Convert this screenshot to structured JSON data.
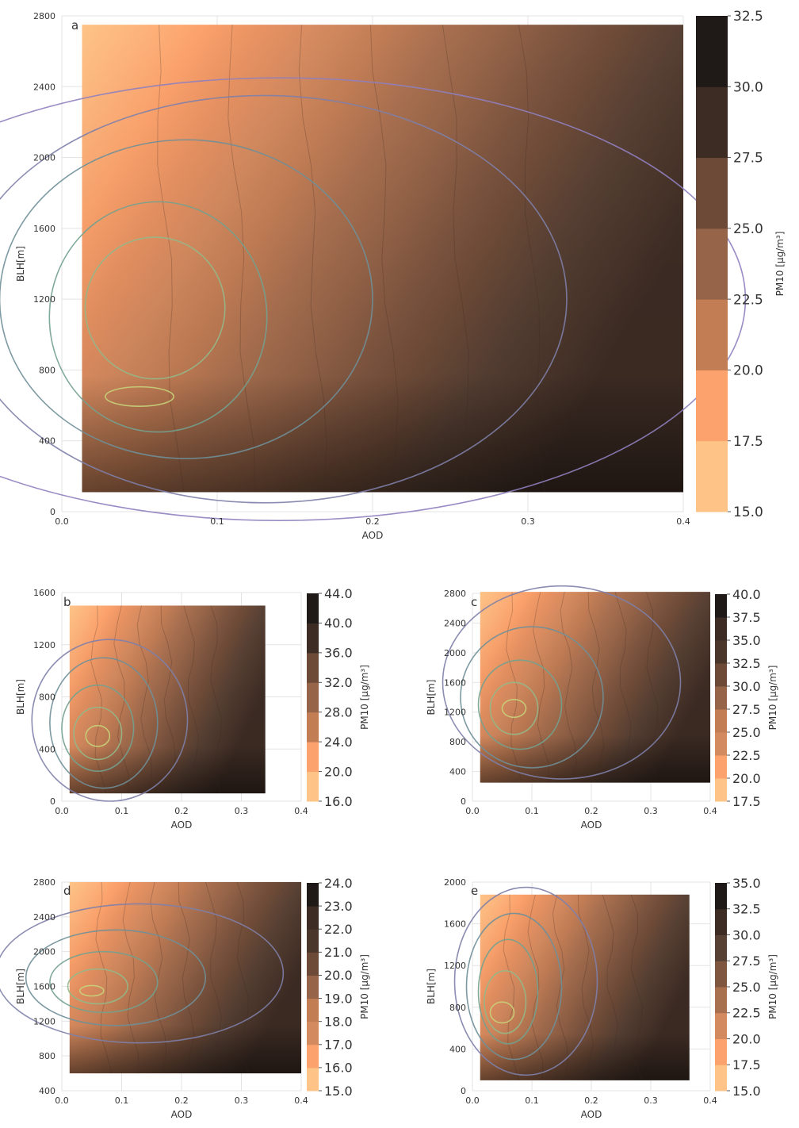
{
  "figure": {
    "colormap": [
      "#fdc387",
      "#fdb47c",
      "#fca26c",
      "#e89262",
      "#d48a5f",
      "#c27d55",
      "#a97050",
      "#966448",
      "#7f5640",
      "#6c4a37",
      "#574034",
      "#4b362b",
      "#3d2c24",
      "#2d2320",
      "#1f1a18"
    ],
    "contour_colors": [
      "#8f7fbf",
      "#7e80a8",
      "#6f8f98",
      "#73a18f",
      "#93b889",
      "#c8d27a"
    ]
  },
  "chart_data": [
    {
      "panel": "a",
      "type": "heatmap",
      "xlabel": "AOD",
      "ylabel": "BLH[m]",
      "xlim": [
        0.0,
        0.4
      ],
      "ylim": [
        0,
        2800
      ],
      "xticks": [
        "0.0",
        "0.1",
        "0.2",
        "0.3",
        "0.4"
      ],
      "yticks": [
        "0",
        "400",
        "800",
        "1200",
        "1600",
        "2000",
        "2400",
        "2800"
      ],
      "colorbar_label": "PM10 [μg/m³]",
      "colorbar_ticks": [
        "15.0",
        "17.5",
        "20.0",
        "22.5",
        "25.0",
        "27.5",
        "30.0",
        "32.5"
      ],
      "data_extent": {
        "x": [
          0.013,
          0.4
        ],
        "y": [
          110,
          2750
        ]
      },
      "contours_data": [
        [
          0.05,
          650,
          0.022,
          55
        ],
        [
          0.06,
          1150,
          0.045,
          400
        ],
        [
          0.062,
          1100,
          0.07,
          650
        ],
        [
          0.08,
          1200,
          0.12,
          900
        ],
        [
          0.13,
          1200,
          0.195,
          1150
        ],
        [
          0.14,
          1200,
          0.3,
          1250
        ]
      ],
      "grid": true
    },
    {
      "panel": "b",
      "type": "heatmap",
      "xlabel": "AOD",
      "ylabel": "BLH[m]",
      "xlim": [
        0.0,
        0.4
      ],
      "ylim": [
        0,
        1600
      ],
      "xticks": [
        "0.0",
        "0.1",
        "0.2",
        "0.3",
        "0.4"
      ],
      "yticks": [
        "0",
        "400",
        "800",
        "1200",
        "1600"
      ],
      "colorbar_label": "PM10 [μg/m³]",
      "colorbar_ticks": [
        "16.0",
        "20.0",
        "24.0",
        "28.0",
        "32.0",
        "36.0",
        "40.0",
        "44.0"
      ],
      "data_extent": {
        "x": [
          0.013,
          0.34
        ],
        "y": [
          60,
          1500
        ]
      },
      "contours_data": [
        [
          0.06,
          500,
          0.02,
          80
        ],
        [
          0.06,
          520,
          0.04,
          200
        ],
        [
          0.06,
          560,
          0.06,
          330
        ],
        [
          0.07,
          600,
          0.09,
          500
        ],
        [
          0.08,
          620,
          0.13,
          620
        ]
      ],
      "grid": true
    },
    {
      "panel": "c",
      "type": "heatmap",
      "xlabel": "AOD",
      "ylabel": "BLH[m]",
      "xlim": [
        0.0,
        0.4
      ],
      "ylim": [
        0,
        2800
      ],
      "xticks": [
        "0.0",
        "0.1",
        "0.2",
        "0.3",
        "0.4"
      ],
      "yticks": [
        "0",
        "400",
        "800",
        "1200",
        "1600",
        "2000",
        "2400",
        "2800"
      ],
      "colorbar_label": "PM10 [μg/m³]",
      "colorbar_ticks": [
        "17.5",
        "20.0",
        "22.5",
        "25.0",
        "27.5",
        "30.0",
        "32.5",
        "35.0",
        "37.5",
        "40.0"
      ],
      "data_extent": {
        "x": [
          0.013,
          0.4
        ],
        "y": [
          250,
          2820
        ]
      },
      "contours_data": [
        [
          0.07,
          1250,
          0.02,
          120
        ],
        [
          0.07,
          1250,
          0.04,
          350
        ],
        [
          0.08,
          1300,
          0.07,
          600
        ],
        [
          0.1,
          1400,
          0.12,
          950
        ],
        [
          0.15,
          1600,
          0.2,
          1300
        ]
      ],
      "grid": true
    },
    {
      "panel": "d",
      "type": "heatmap",
      "xlabel": "AOD",
      "ylabel": "BLH[m]",
      "xlim": [
        0.0,
        0.4
      ],
      "ylim": [
        400,
        2800
      ],
      "xticks": [
        "0.0",
        "0.1",
        "0.2",
        "0.3",
        "0.4"
      ],
      "yticks": [
        "400",
        "800",
        "1200",
        "1600",
        "2000",
        "2400",
        "2800"
      ],
      "colorbar_label": "PM10 [μg/m³]",
      "colorbar_ticks": [
        "15.0",
        "16.0",
        "17.0",
        "18.0",
        "19.0",
        "20.0",
        "21.0",
        "22.0",
        "23.0",
        "24.0"
      ],
      "data_extent": {
        "x": [
          0.013,
          0.4
        ],
        "y": [
          600,
          2800
        ]
      },
      "contours_data": [
        [
          0.05,
          1550,
          0.02,
          60
        ],
        [
          0.06,
          1600,
          0.05,
          200
        ],
        [
          0.07,
          1650,
          0.09,
          350
        ],
        [
          0.09,
          1700,
          0.15,
          550
        ],
        [
          0.13,
          1750,
          0.24,
          800
        ]
      ],
      "grid": true
    },
    {
      "panel": "e",
      "type": "heatmap",
      "xlabel": "AOD",
      "ylabel": "BLH[m]",
      "xlim": [
        0.0,
        0.4
      ],
      "ylim": [
        0,
        2000
      ],
      "xticks": [
        "0.0",
        "0.1",
        "0.2",
        "0.3",
        "0.4"
      ],
      "yticks": [
        "0",
        "400",
        "800",
        "1200",
        "1600",
        "2000"
      ],
      "colorbar_label": "PM10 [μg/m³]",
      "colorbar_ticks": [
        "15.0",
        "17.5",
        "20.0",
        "22.5",
        "25.0",
        "27.5",
        "30.0",
        "32.5",
        "35.0"
      ],
      "data_extent": {
        "x": [
          0.013,
          0.365
        ],
        "y": [
          100,
          1880
        ]
      },
      "contours_data": [
        [
          0.05,
          750,
          0.02,
          100
        ],
        [
          0.055,
          850,
          0.035,
          300
        ],
        [
          0.06,
          950,
          0.05,
          500
        ],
        [
          0.07,
          1000,
          0.08,
          700
        ],
        [
          0.09,
          1050,
          0.12,
          900
        ]
      ],
      "grid": true
    }
  ]
}
